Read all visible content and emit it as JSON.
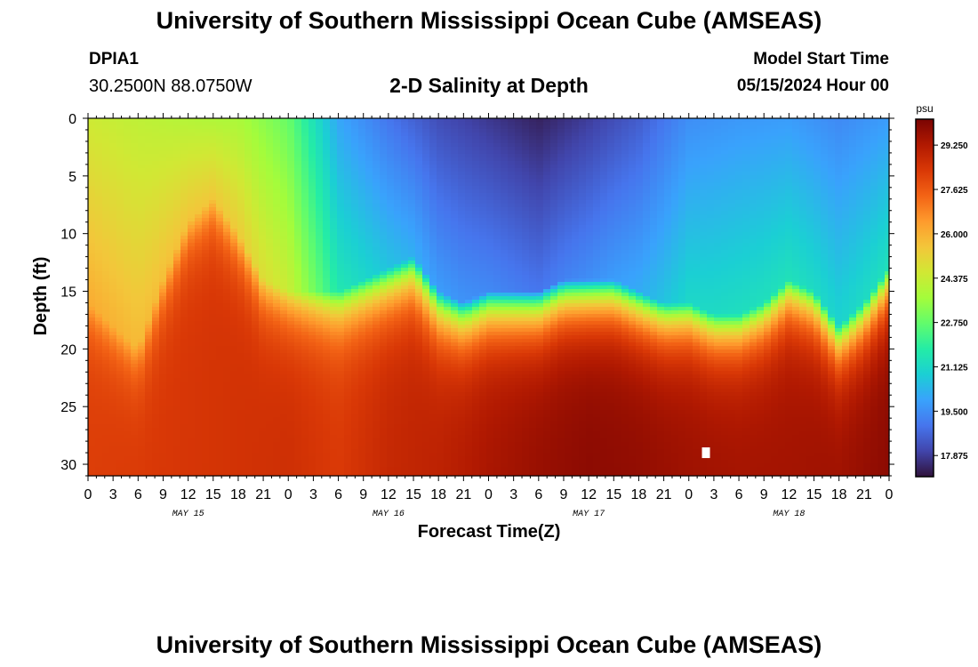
{
  "page": {
    "title": "University of Southern Mississippi Ocean Cube (AMSEAS)",
    "footer_title": "University of Southern Mississippi Ocean Cube (AMSEAS)"
  },
  "station": {
    "id": "DPIA1",
    "coords": "30.2500N  88.0750W"
  },
  "model": {
    "label": "Model Start Time",
    "start": "05/15/2024 Hour 00"
  },
  "chart_data": {
    "type": "heatmap",
    "title": "2-D Salinity at Depth",
    "xlabel": "Forecast Time(Z)",
    "ylabel": "Depth (ft)",
    "x_hours_range": [
      0,
      96
    ],
    "x_tick_labels": [
      "0",
      "3",
      "6",
      "9",
      "12",
      "15",
      "18",
      "21",
      "0",
      "3",
      "6",
      "9",
      "12",
      "15",
      "18",
      "21",
      "0",
      "3",
      "6",
      "9",
      "12",
      "15",
      "18",
      "21",
      "0",
      "3",
      "6",
      "9",
      "12",
      "15",
      "18",
      "21",
      "0"
    ],
    "day_labels": [
      {
        "label": "MAY 15",
        "hour": 12
      },
      {
        "label": "MAY 16",
        "hour": 36
      },
      {
        "label": "MAY 17",
        "hour": 60
      },
      {
        "label": "MAY 18",
        "hour": 84
      }
    ],
    "y_range_ft": [
      0,
      31
    ],
    "y_ticks": [
      "0",
      "5",
      "10",
      "15",
      "20",
      "25",
      "30"
    ],
    "colorbar": {
      "unit": "psu",
      "range": [
        17.1,
        30.2
      ],
      "tick_values": [
        29.25,
        27.625,
        26.0,
        24.375,
        22.75,
        21.125,
        19.5,
        17.875
      ],
      "tick_labels": [
        "29.250",
        "27.625",
        "26.000",
        "24.375",
        "22.750",
        "21.125",
        "19.500",
        "17.875"
      ],
      "colors": [
        "#30123b",
        "#4145ab",
        "#4675ed",
        "#39a2fc",
        "#1bcfd4",
        "#24eca6",
        "#61fc6c",
        "#a4fc3b",
        "#d1e834",
        "#f3c63a",
        "#fe9b2d",
        "#f36315",
        "#d93806",
        "#b11901",
        "#7a0402"
      ]
    },
    "cline_depth_ft": {
      "hours": [
        0,
        3,
        6,
        9,
        12,
        15,
        18,
        21,
        24,
        27,
        30,
        33,
        36,
        39,
        42,
        45,
        48,
        51,
        54,
        57,
        60,
        63,
        66,
        69,
        72,
        75,
        78,
        81,
        84,
        87,
        90,
        93,
        96
      ],
      "depths": [
        16,
        18,
        20,
        14,
        9,
        7,
        10,
        14,
        15,
        15,
        15,
        14,
        13,
        12,
        15,
        16,
        15,
        15,
        15,
        14,
        14,
        14,
        15,
        16,
        16,
        17,
        17,
        16,
        14,
        15,
        18,
        16,
        13
      ]
    },
    "surface_salinity_psu": {
      "hours": [
        0,
        6,
        12,
        18,
        24,
        30,
        36,
        42,
        48,
        54,
        60,
        66,
        72,
        78,
        84,
        90,
        96
      ],
      "values": [
        24.5,
        24.2,
        24.0,
        23.8,
        22.8,
        20.0,
        19.0,
        18.2,
        17.8,
        17.4,
        17.9,
        18.5,
        19.5,
        19.7,
        19.8,
        19.4,
        19.8
      ]
    },
    "bottom_salinity_psu": {
      "hours": [
        0,
        6,
        12,
        18,
        24,
        30,
        36,
        42,
        48,
        54,
        60,
        66,
        72,
        78,
        84,
        90,
        96
      ],
      "values": [
        28.2,
        28.3,
        28.4,
        28.5,
        28.6,
        28.3,
        28.8,
        29.0,
        29.4,
        29.7,
        29.9,
        29.8,
        29.6,
        29.5,
        29.5,
        29.6,
        29.9
      ]
    },
    "missing_cell": {
      "hour": 74,
      "depth_ft": 29
    }
  }
}
